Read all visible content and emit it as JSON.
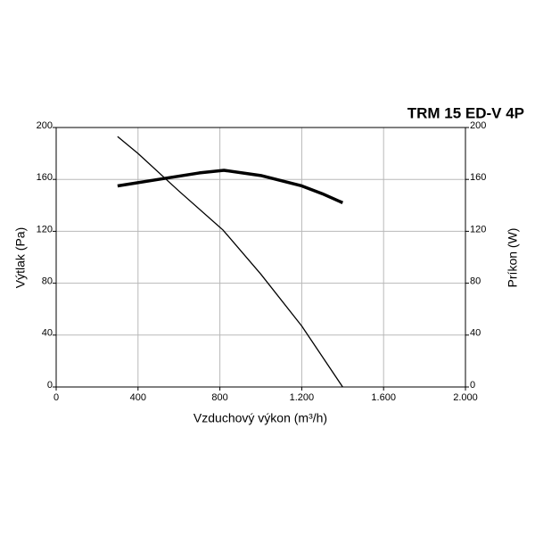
{
  "chart_data": {
    "type": "line",
    "title": "TRM 15 ED-V 4P",
    "xlabel": "Vzduchový výkon (m³/h)",
    "ylabel": "Výtlak (Pa)",
    "y2label": "Príkon (W)",
    "xlim": [
      0,
      2000
    ],
    "xticks": [
      0,
      400,
      800,
      {
        "value": 1200,
        "label": "1.200"
      },
      {
        "value": 1600,
        "label": "1.600"
      },
      {
        "value": 2000,
        "label": "2.000"
      }
    ],
    "ylim": [
      0,
      200
    ],
    "yticks": [
      0,
      40,
      80,
      120,
      160,
      200
    ],
    "y2lim": [
      0,
      200
    ],
    "y2ticks": [
      0,
      40,
      80,
      120,
      160,
      200
    ],
    "grid": true,
    "series": [
      {
        "color": "#000000",
        "line_width": 1.3,
        "x": [
          300,
          400,
          600,
          815,
          1000,
          1200,
          1400
        ],
        "values": [
          193,
          180,
          151,
          121,
          87,
          47,
          0
        ]
      },
      {
        "color": "#000000",
        "line_width": 3.5,
        "axis": "y2",
        "x": [
          300,
          500,
          700,
          820,
          1000,
          1200,
          1300,
          1400
        ],
        "values": [
          155,
          160,
          165,
          167,
          163,
          155,
          149,
          142
        ]
      }
    ]
  }
}
